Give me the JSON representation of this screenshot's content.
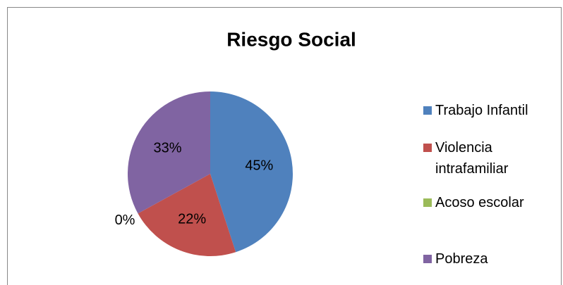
{
  "chart_data": {
    "type": "pie",
    "title": "Riesgo Social",
    "categories": [
      "Trabajo Infantil",
      "Violencia intrafamiliar",
      "Acoso escolar",
      "Pobreza"
    ],
    "values": [
      45,
      22,
      0,
      33
    ],
    "value_labels": [
      "45%",
      "22%",
      "0%",
      "33%"
    ],
    "colors": [
      "#4f81bd",
      "#c0504d",
      "#9bbb59",
      "#8064a2"
    ],
    "legend": "right"
  }
}
